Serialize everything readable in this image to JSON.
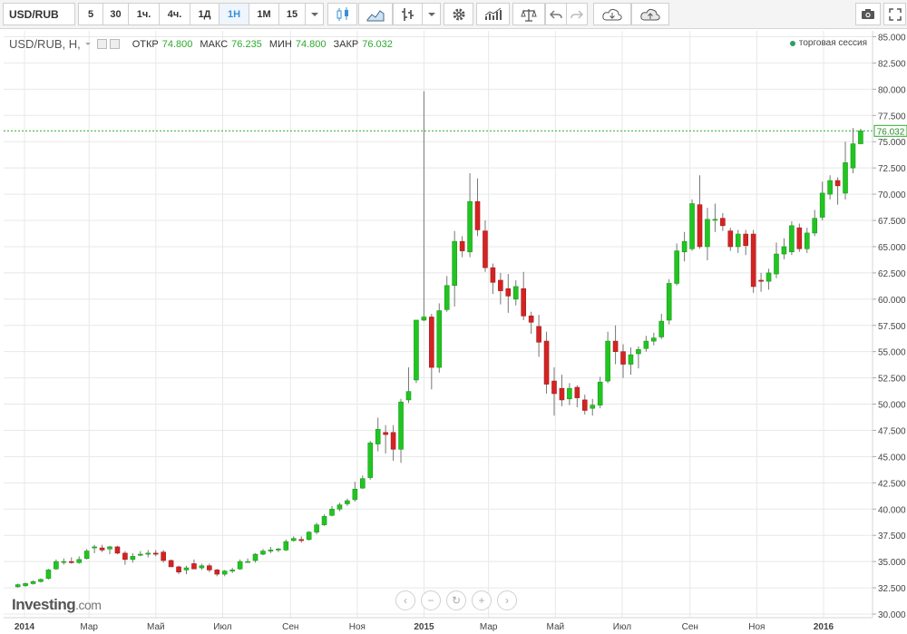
{
  "toolbar": {
    "symbol": "USD/RUB",
    "timeframes": [
      "5",
      "30",
      "1ч.",
      "4ч.",
      "1Д",
      "1Н",
      "1М",
      "15"
    ],
    "active_timeframe": "1Н"
  },
  "legend": {
    "title": "USD/RUB, Н,",
    "open_label": "ОТКР",
    "open_value": "74.800",
    "high_label": "МАКС",
    "high_value": "76.235",
    "low_label": "МИН",
    "low_value": "74.800",
    "close_label": "ЗАКР",
    "close_value": "76.032"
  },
  "session_label": "торговая сессия",
  "logo": {
    "main": "Investing",
    "suffix": ".com"
  },
  "colors": {
    "up": "#21c521",
    "down": "#d42323",
    "last_line": "#2ea82e",
    "grid": "#e8e8e8"
  },
  "chart_data": {
    "type": "candlestick",
    "y_ticks": [
      "85.000",
      "82.500",
      "80.000",
      "77.500",
      "75.000",
      "72.500",
      "70.000",
      "67.500",
      "65.000",
      "62.500",
      "60.000",
      "57.500",
      "55.000",
      "52.500",
      "50.000",
      "47.500",
      "45.000",
      "42.500",
      "40.000",
      "37.500",
      "35.000",
      "32.500",
      "30.000"
    ],
    "ylim": [
      30,
      85
    ],
    "x_ticks": [
      {
        "label": "2014",
        "date": "2014-01-01",
        "bold": true
      },
      {
        "label": "Мар",
        "date": "2014-03-01",
        "bold": false
      },
      {
        "label": "Май",
        "date": "2014-05-01",
        "bold": false
      },
      {
        "label": "Июл",
        "date": "2014-07-01",
        "bold": false
      },
      {
        "label": "Сен",
        "date": "2014-09-01",
        "bold": false
      },
      {
        "label": "Ноя",
        "date": "2014-11-01",
        "bold": false
      },
      {
        "label": "2015",
        "date": "2015-01-01",
        "bold": true
      },
      {
        "label": "Мар",
        "date": "2015-03-01",
        "bold": false
      },
      {
        "label": "Май",
        "date": "2015-05-01",
        "bold": false
      },
      {
        "label": "Июл",
        "date": "2015-07-01",
        "bold": false
      },
      {
        "label": "Сен",
        "date": "2015-09-01",
        "bold": false
      },
      {
        "label": "Ноя",
        "date": "2015-11-01",
        "bold": false
      },
      {
        "label": "2016",
        "date": "2016-01-01",
        "bold": true
      }
    ],
    "last_price": "76.032",
    "last_value": 76.032,
    "candles": [
      {
        "date": "2013-12-23",
        "o": 32.6,
        "h": 32.9,
        "l": 32.5,
        "c": 32.8
      },
      {
        "date": "2013-12-30",
        "o": 32.7,
        "h": 33.0,
        "l": 32.6,
        "c": 32.9
      },
      {
        "date": "2014-01-06",
        "o": 32.9,
        "h": 33.2,
        "l": 32.8,
        "c": 33.1
      },
      {
        "date": "2014-01-13",
        "o": 33.1,
        "h": 33.4,
        "l": 33.0,
        "c": 33.3
      },
      {
        "date": "2014-01-20",
        "o": 33.4,
        "h": 34.3,
        "l": 33.3,
        "c": 34.2
      },
      {
        "date": "2014-01-27",
        "o": 34.3,
        "h": 35.2,
        "l": 34.2,
        "c": 35.0
      },
      {
        "date": "2014-02-03",
        "o": 35.0,
        "h": 35.3,
        "l": 34.7,
        "c": 35.0
      },
      {
        "date": "2014-02-10",
        "o": 35.0,
        "h": 35.4,
        "l": 34.8,
        "c": 34.9
      },
      {
        "date": "2014-02-17",
        "o": 34.9,
        "h": 35.5,
        "l": 34.8,
        "c": 35.2
      },
      {
        "date": "2014-02-24",
        "o": 35.3,
        "h": 36.2,
        "l": 35.2,
        "c": 36.0
      },
      {
        "date": "2014-03-03",
        "o": 36.3,
        "h": 36.6,
        "l": 35.8,
        "c": 36.4
      },
      {
        "date": "2014-03-10",
        "o": 36.3,
        "h": 36.6,
        "l": 35.9,
        "c": 36.1
      },
      {
        "date": "2014-03-17",
        "o": 36.2,
        "h": 36.5,
        "l": 35.7,
        "c": 36.4
      },
      {
        "date": "2014-03-24",
        "o": 36.4,
        "h": 36.5,
        "l": 35.7,
        "c": 35.8
      },
      {
        "date": "2014-03-31",
        "o": 35.8,
        "h": 36.0,
        "l": 34.7,
        "c": 35.2
      },
      {
        "date": "2014-04-07",
        "o": 35.2,
        "h": 35.8,
        "l": 34.9,
        "c": 35.5
      },
      {
        "date": "2014-04-14",
        "o": 35.6,
        "h": 36.0,
        "l": 35.5,
        "c": 35.7
      },
      {
        "date": "2014-04-21",
        "o": 35.7,
        "h": 36.1,
        "l": 35.4,
        "c": 35.8
      },
      {
        "date": "2014-04-28",
        "o": 35.8,
        "h": 36.1,
        "l": 35.5,
        "c": 35.7
      },
      {
        "date": "2014-05-05",
        "o": 35.9,
        "h": 36.1,
        "l": 34.9,
        "c": 35.1
      },
      {
        "date": "2014-05-12",
        "o": 35.1,
        "h": 35.2,
        "l": 34.5,
        "c": 34.5
      },
      {
        "date": "2014-05-19",
        "o": 34.5,
        "h": 34.6,
        "l": 33.8,
        "c": 34.0
      },
      {
        "date": "2014-05-26",
        "o": 34.2,
        "h": 34.6,
        "l": 33.8,
        "c": 34.4
      },
      {
        "date": "2014-06-02",
        "o": 34.8,
        "h": 35.2,
        "l": 34.3,
        "c": 34.3
      },
      {
        "date": "2014-06-09",
        "o": 34.4,
        "h": 34.8,
        "l": 34.2,
        "c": 34.6
      },
      {
        "date": "2014-06-16",
        "o": 34.6,
        "h": 34.8,
        "l": 34.0,
        "c": 34.2
      },
      {
        "date": "2014-06-23",
        "o": 34.2,
        "h": 34.3,
        "l": 33.6,
        "c": 33.8
      },
      {
        "date": "2014-06-30",
        "o": 33.8,
        "h": 34.2,
        "l": 33.6,
        "c": 34.1
      },
      {
        "date": "2014-07-07",
        "o": 34.1,
        "h": 34.4,
        "l": 33.9,
        "c": 34.2
      },
      {
        "date": "2014-07-14",
        "o": 34.3,
        "h": 35.2,
        "l": 34.2,
        "c": 35.0
      },
      {
        "date": "2014-07-21",
        "o": 35.0,
        "h": 35.3,
        "l": 34.9,
        "c": 35.0
      },
      {
        "date": "2014-07-28",
        "o": 35.1,
        "h": 35.8,
        "l": 34.9,
        "c": 35.7
      },
      {
        "date": "2014-08-04",
        "o": 35.7,
        "h": 36.2,
        "l": 35.6,
        "c": 36.0
      },
      {
        "date": "2014-08-11",
        "o": 36.0,
        "h": 36.4,
        "l": 35.8,
        "c": 36.1
      },
      {
        "date": "2014-08-18",
        "o": 36.1,
        "h": 36.3,
        "l": 35.9,
        "c": 36.2
      },
      {
        "date": "2014-08-25",
        "o": 36.1,
        "h": 37.1,
        "l": 36.0,
        "c": 36.9
      },
      {
        "date": "2014-09-01",
        "o": 37.0,
        "h": 37.4,
        "l": 36.9,
        "c": 37.2
      },
      {
        "date": "2014-09-08",
        "o": 37.1,
        "h": 37.4,
        "l": 36.8,
        "c": 37.0
      },
      {
        "date": "2014-09-15",
        "o": 37.1,
        "h": 37.9,
        "l": 37.0,
        "c": 37.8
      },
      {
        "date": "2014-09-22",
        "o": 37.8,
        "h": 38.7,
        "l": 37.6,
        "c": 38.5
      },
      {
        "date": "2014-09-29",
        "o": 38.5,
        "h": 39.5,
        "l": 38.4,
        "c": 39.3
      },
      {
        "date": "2014-10-06",
        "o": 39.4,
        "h": 40.3,
        "l": 39.3,
        "c": 40.0
      },
      {
        "date": "2014-10-13",
        "o": 40.0,
        "h": 40.6,
        "l": 39.8,
        "c": 40.4
      },
      {
        "date": "2014-10-20",
        "o": 40.5,
        "h": 41.0,
        "l": 40.3,
        "c": 40.8
      },
      {
        "date": "2014-10-27",
        "o": 40.9,
        "h": 42.6,
        "l": 40.7,
        "c": 41.9
      },
      {
        "date": "2014-11-03",
        "o": 42.0,
        "h": 43.2,
        "l": 41.9,
        "c": 42.9
      },
      {
        "date": "2014-11-10",
        "o": 43.0,
        "h": 46.5,
        "l": 42.8,
        "c": 46.3
      },
      {
        "date": "2014-11-17",
        "o": 46.2,
        "h": 48.7,
        "l": 45.5,
        "c": 47.6
      },
      {
        "date": "2014-11-24",
        "o": 47.3,
        "h": 48.0,
        "l": 45.3,
        "c": 47.1
      },
      {
        "date": "2014-12-01",
        "o": 47.3,
        "h": 48.0,
        "l": 44.6,
        "c": 45.7
      },
      {
        "date": "2014-12-08",
        "o": 45.7,
        "h": 50.5,
        "l": 44.4,
        "c": 50.2
      },
      {
        "date": "2014-12-15",
        "o": 50.4,
        "h": 53.5,
        "l": 50.1,
        "c": 51.2
      },
      {
        "date": "2014-12-22",
        "o": 52.3,
        "h": 58.0,
        "l": 52.0,
        "c": 58.0
      },
      {
        "date": "2014-12-29",
        "o": 58.0,
        "h": 79.8,
        "l": 57.9,
        "c": 58.3
      },
      {
        "date": "2015-01-05",
        "o": 58.3,
        "h": 58.6,
        "l": 51.4,
        "c": 53.5
      },
      {
        "date": "2015-01-12",
        "o": 53.5,
        "h": 59.6,
        "l": 53.0,
        "c": 58.9
      },
      {
        "date": "2015-01-19",
        "o": 59.0,
        "h": 62.2,
        "l": 58.8,
        "c": 61.3
      },
      {
        "date": "2015-01-26",
        "o": 61.3,
        "h": 66.5,
        "l": 59.3,
        "c": 65.5
      },
      {
        "date": "2015-02-02",
        "o": 65.5,
        "h": 66.0,
        "l": 64.0,
        "c": 64.6
      },
      {
        "date": "2015-02-09",
        "o": 64.5,
        "h": 72.0,
        "l": 64.0,
        "c": 69.3
      },
      {
        "date": "2015-02-16",
        "o": 69.3,
        "h": 71.5,
        "l": 66.0,
        "c": 66.6
      },
      {
        "date": "2015-02-23",
        "o": 66.5,
        "h": 67.5,
        "l": 62.6,
        "c": 63.0
      },
      {
        "date": "2015-03-02",
        "o": 63.0,
        "h": 63.4,
        "l": 60.5,
        "c": 61.6
      },
      {
        "date": "2015-03-09",
        "o": 61.8,
        "h": 62.5,
        "l": 59.5,
        "c": 60.8
      },
      {
        "date": "2015-03-16",
        "o": 61.0,
        "h": 62.4,
        "l": 58.7,
        "c": 60.3
      },
      {
        "date": "2015-03-23",
        "o": 60.0,
        "h": 61.8,
        "l": 59.4,
        "c": 61.2
      },
      {
        "date": "2015-03-30",
        "o": 61.0,
        "h": 62.6,
        "l": 58.0,
        "c": 58.4
      },
      {
        "date": "2015-04-06",
        "o": 58.4,
        "h": 58.8,
        "l": 56.7,
        "c": 57.8
      },
      {
        "date": "2015-04-13",
        "o": 57.4,
        "h": 58.5,
        "l": 54.5,
        "c": 55.9
      },
      {
        "date": "2015-04-20",
        "o": 56.0,
        "h": 56.9,
        "l": 51.0,
        "c": 51.9
      },
      {
        "date": "2015-04-27",
        "o": 52.2,
        "h": 53.5,
        "l": 48.9,
        "c": 51.0
      },
      {
        "date": "2015-05-04",
        "o": 51.5,
        "h": 52.8,
        "l": 49.8,
        "c": 50.4
      },
      {
        "date": "2015-05-11",
        "o": 50.5,
        "h": 52.0,
        "l": 49.9,
        "c": 51.5
      },
      {
        "date": "2015-05-18",
        "o": 51.6,
        "h": 51.8,
        "l": 49.7,
        "c": 50.6
      },
      {
        "date": "2015-05-25",
        "o": 50.4,
        "h": 50.9,
        "l": 49.0,
        "c": 49.4
      },
      {
        "date": "2015-06-01",
        "o": 49.6,
        "h": 50.5,
        "l": 48.9,
        "c": 49.9
      },
      {
        "date": "2015-06-08",
        "o": 49.9,
        "h": 52.6,
        "l": 49.6,
        "c": 52.1
      },
      {
        "date": "2015-06-15",
        "o": 52.2,
        "h": 56.9,
        "l": 52.0,
        "c": 56.0
      },
      {
        "date": "2015-06-22",
        "o": 56.0,
        "h": 57.5,
        "l": 53.8,
        "c": 55.0
      },
      {
        "date": "2015-06-29",
        "o": 55.0,
        "h": 55.7,
        "l": 52.5,
        "c": 53.8
      },
      {
        "date": "2015-07-06",
        "o": 53.8,
        "h": 55.4,
        "l": 52.8,
        "c": 54.7
      },
      {
        "date": "2015-07-13",
        "o": 54.8,
        "h": 55.5,
        "l": 53.4,
        "c": 55.2
      },
      {
        "date": "2015-07-20",
        "o": 55.3,
        "h": 56.5,
        "l": 55.0,
        "c": 56.0
      },
      {
        "date": "2015-07-27",
        "o": 56.0,
        "h": 56.8,
        "l": 55.6,
        "c": 56.3
      },
      {
        "date": "2015-08-03",
        "o": 56.4,
        "h": 58.6,
        "l": 56.2,
        "c": 57.9
      },
      {
        "date": "2015-08-10",
        "o": 58.0,
        "h": 61.9,
        "l": 57.6,
        "c": 61.5
      },
      {
        "date": "2015-08-17",
        "o": 61.5,
        "h": 65.3,
        "l": 61.3,
        "c": 64.6
      },
      {
        "date": "2015-08-24",
        "o": 64.5,
        "h": 66.4,
        "l": 63.6,
        "c": 65.5
      },
      {
        "date": "2015-08-31",
        "o": 64.8,
        "h": 69.5,
        "l": 64.6,
        "c": 69.1
      },
      {
        "date": "2015-09-07",
        "o": 69.0,
        "h": 71.8,
        "l": 64.8,
        "c": 65.0
      },
      {
        "date": "2015-09-14",
        "o": 65.0,
        "h": 68.7,
        "l": 63.7,
        "c": 67.6
      },
      {
        "date": "2015-09-21",
        "o": 67.6,
        "h": 69.1,
        "l": 66.4,
        "c": 67.6
      },
      {
        "date": "2015-09-28",
        "o": 67.7,
        "h": 68.2,
        "l": 66.5,
        "c": 67.0
      },
      {
        "date": "2015-10-05",
        "o": 66.5,
        "h": 66.8,
        "l": 64.6,
        "c": 65.0
      },
      {
        "date": "2015-10-12",
        "o": 65.0,
        "h": 66.6,
        "l": 64.4,
        "c": 66.2
      },
      {
        "date": "2015-10-19",
        "o": 66.2,
        "h": 66.6,
        "l": 64.2,
        "c": 65.1
      },
      {
        "date": "2015-10-26",
        "o": 66.2,
        "h": 66.6,
        "l": 60.6,
        "c": 61.2
      },
      {
        "date": "2015-11-02",
        "o": 61.8,
        "h": 62.5,
        "l": 60.7,
        "c": 61.7
      },
      {
        "date": "2015-11-09",
        "o": 61.7,
        "h": 62.9,
        "l": 60.9,
        "c": 62.5
      },
      {
        "date": "2015-11-16",
        "o": 62.4,
        "h": 65.4,
        "l": 62.0,
        "c": 64.3
      },
      {
        "date": "2015-11-23",
        "o": 64.3,
        "h": 65.8,
        "l": 63.8,
        "c": 65.0
      },
      {
        "date": "2015-11-30",
        "o": 64.5,
        "h": 67.4,
        "l": 64.2,
        "c": 67.0
      },
      {
        "date": "2015-12-07",
        "o": 66.8,
        "h": 67.2,
        "l": 64.5,
        "c": 64.8
      },
      {
        "date": "2015-12-14",
        "o": 64.8,
        "h": 66.8,
        "l": 64.4,
        "c": 66.3
      },
      {
        "date": "2015-12-21",
        "o": 66.3,
        "h": 68.5,
        "l": 66.0,
        "c": 67.7
      },
      {
        "date": "2015-12-28",
        "o": 67.8,
        "h": 71.2,
        "l": 67.5,
        "c": 70.1
      },
      {
        "date": "2016-01-04",
        "o": 70.0,
        "h": 71.8,
        "l": 69.5,
        "c": 71.3
      },
      {
        "date": "2016-01-11",
        "o": 71.3,
        "h": 71.6,
        "l": 69.0,
        "c": 70.8
      },
      {
        "date": "2016-01-18",
        "o": 70.1,
        "h": 75.0,
        "l": 69.5,
        "c": 73.0
      },
      {
        "date": "2016-01-25",
        "o": 72.5,
        "h": 76.3,
        "l": 72.0,
        "c": 74.8
      },
      {
        "date": "2016-02-01",
        "o": 74.8,
        "h": 76.235,
        "l": 74.8,
        "c": 76.032
      }
    ]
  }
}
